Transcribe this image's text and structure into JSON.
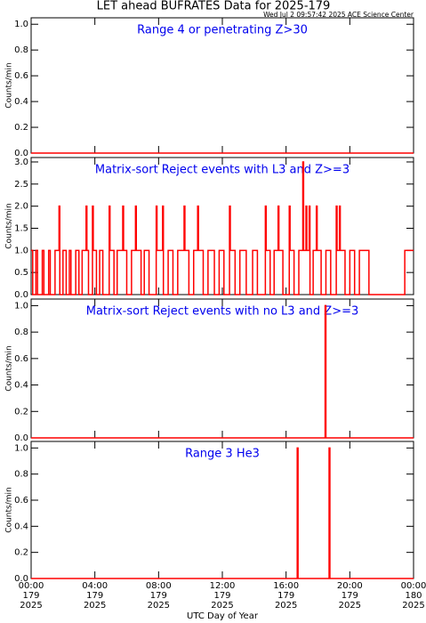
{
  "title": "LET ahead BUFRATES Data for 2025-179",
  "timestamp": "Wed Jul  2 09:57:42 2025 ACE Science Center",
  "xlabel": "UTC Day of Year",
  "xlim": [
    0,
    24
  ],
  "xticks": [
    {
      "value": 0,
      "label": [
        "00:00",
        "179",
        "2025"
      ]
    },
    {
      "value": 4,
      "label": [
        "04:00",
        "179",
        "2025"
      ]
    },
    {
      "value": 8,
      "label": [
        "08:00",
        "179",
        "2025"
      ]
    },
    {
      "value": 12,
      "label": [
        "12:00",
        "179",
        "2025"
      ]
    },
    {
      "value": 16,
      "label": [
        "16:00",
        "179",
        "2025"
      ]
    },
    {
      "value": 20,
      "label": [
        "20:00",
        "179",
        "2025"
      ]
    },
    {
      "value": 24,
      "label": [
        "00:00",
        "180",
        "2025"
      ]
    }
  ],
  "chart_data": [
    {
      "type": "line",
      "step": true,
      "annotation": "Range 4 or  penetrating Z>30",
      "ylabel": "Counts/min",
      "color": "#ff0000",
      "ylim": [
        0,
        1.05
      ],
      "yticks": [
        {
          "value": 0,
          "label": "0.0"
        },
        {
          "value": 0.2,
          "label": "0.2"
        },
        {
          "value": 0.4,
          "label": "0.4"
        },
        {
          "value": 0.6,
          "label": "0.6"
        },
        {
          "value": 0.8,
          "label": "0.8"
        },
        {
          "value": 1,
          "label": "1.0"
        }
      ],
      "x": [
        0,
        24
      ],
      "values": [
        0,
        0
      ]
    },
    {
      "type": "line",
      "step": true,
      "annotation": "Matrix-sort Reject events with L3 and Z>=3",
      "ylabel": "Counts/min",
      "color": "#ff0000",
      "ylim": [
        0,
        3.1
      ],
      "yticks": [
        {
          "value": 0,
          "label": "0.0"
        },
        {
          "value": 0.5,
          "label": "0.5"
        },
        {
          "value": 1,
          "label": "1.0"
        },
        {
          "value": 1.5,
          "label": "1.5"
        },
        {
          "value": 2,
          "label": "2.0"
        },
        {
          "value": 2.5,
          "label": "2.5"
        },
        {
          "value": 3,
          "label": "3.0"
        }
      ],
      "x": [
        0,
        0.1,
        0.3,
        0.4,
        0.7,
        0.8,
        1.1,
        1.2,
        1.5,
        1.75,
        1.8,
        2.0,
        2.2,
        2.4,
        2.5,
        2.8,
        3.0,
        3.2,
        3.45,
        3.5,
        3.6,
        3.85,
        3.9,
        4.1,
        4.3,
        4.5,
        4.9,
        4.95,
        5.2,
        5.4,
        5.75,
        5.8,
        6.0,
        6.3,
        6.55,
        6.6,
        6.9,
        7.1,
        7.4,
        7.85,
        7.9,
        8.25,
        8.3,
        8.6,
        8.9,
        9.2,
        9.6,
        9.65,
        9.9,
        10.2,
        10.45,
        10.5,
        10.8,
        11.1,
        11.5,
        11.8,
        12.1,
        12.45,
        12.5,
        12.8,
        13.1,
        13.5,
        13.9,
        14.2,
        14.7,
        14.75,
        15.0,
        15.25,
        15.5,
        15.55,
        15.8,
        16.2,
        16.25,
        16.5,
        16.8,
        17.05,
        17.1,
        17.25,
        17.3,
        17.45,
        17.5,
        17.7,
        17.9,
        17.95,
        18.2,
        18.5,
        18.8,
        19.15,
        19.2,
        19.35,
        19.4,
        19.7,
        20.0,
        20.3,
        20.6,
        20.9,
        21.2,
        23.45,
        24
      ],
      "values": [
        1,
        0,
        1,
        0,
        1,
        0,
        1,
        0,
        1,
        2,
        0,
        1,
        0,
        1,
        0,
        1,
        0,
        1,
        2,
        1,
        0,
        2,
        1,
        0,
        1,
        0,
        2,
        1,
        0,
        1,
        2,
        1,
        0,
        1,
        2,
        1,
        0,
        1,
        0,
        2,
        1,
        2,
        0,
        1,
        0,
        1,
        2,
        1,
        0,
        1,
        2,
        1,
        0,
        1,
        0,
        1,
        0,
        2,
        1,
        0,
        1,
        0,
        1,
        0,
        2,
        1,
        0,
        1,
        2,
        1,
        0,
        2,
        1,
        0,
        1,
        3,
        1,
        2,
        1,
        2,
        0,
        1,
        2,
        1,
        0,
        1,
        0,
        2,
        1,
        2,
        1,
        0,
        1,
        0,
        1,
        1,
        0,
        1,
        1
      ]
    },
    {
      "type": "line",
      "step": true,
      "annotation": "Matrix-sort Reject events with no L3 and Z>=3",
      "ylabel": "Counts/min",
      "color": "#ff0000",
      "ylim": [
        0,
        1.05
      ],
      "yticks": [
        {
          "value": 0,
          "label": "0.0"
        },
        {
          "value": 0.2,
          "label": "0.2"
        },
        {
          "value": 0.4,
          "label": "0.4"
        },
        {
          "value": 0.6,
          "label": "0.6"
        },
        {
          "value": 0.8,
          "label": "0.8"
        },
        {
          "value": 1,
          "label": "1.0"
        }
      ],
      "x": [
        0,
        18.45,
        18.5,
        24
      ],
      "values": [
        0,
        1,
        0,
        0
      ]
    },
    {
      "type": "line",
      "step": true,
      "annotation": "Range 3 He3",
      "ylabel": "Counts/min",
      "color": "#ff0000",
      "ylim": [
        0,
        1.05
      ],
      "yticks": [
        {
          "value": 0,
          "label": "0.0"
        },
        {
          "value": 0.2,
          "label": "0.2"
        },
        {
          "value": 0.4,
          "label": "0.4"
        },
        {
          "value": 0.6,
          "label": "0.6"
        },
        {
          "value": 0.8,
          "label": "0.8"
        },
        {
          "value": 1,
          "label": "1.0"
        }
      ],
      "x": [
        0,
        16.7,
        16.75,
        18.7,
        18.75,
        24
      ],
      "values": [
        0,
        1,
        0,
        1,
        0,
        0
      ]
    }
  ]
}
